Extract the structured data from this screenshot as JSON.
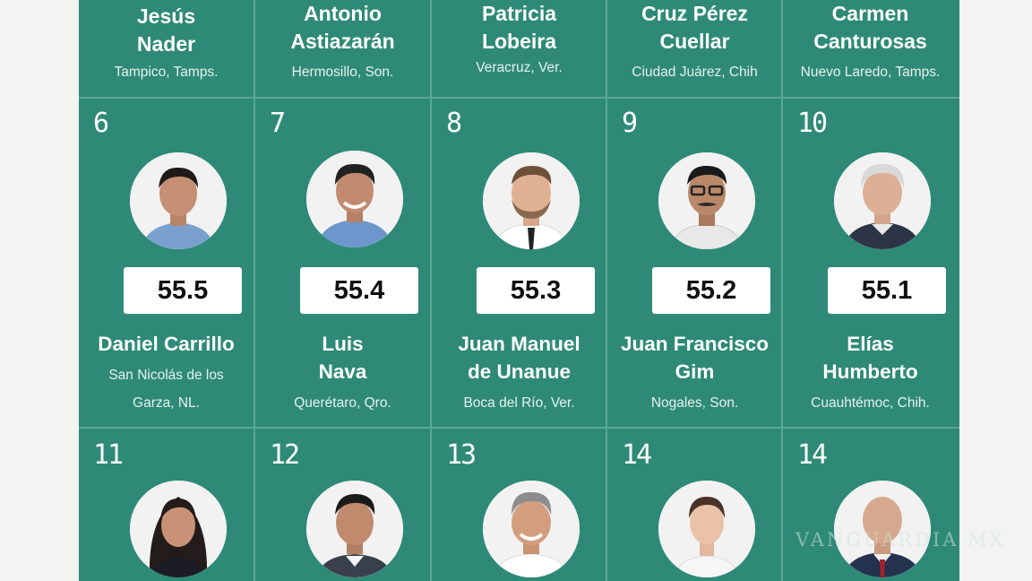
{
  "top_row": [
    {
      "first": "Jesús",
      "last": "Nader",
      "location": "Tampico, Tamps."
    },
    {
      "first": "Antonio",
      "last": "Astiazarán",
      "location": "Hermosillo, Son."
    },
    {
      "first": "Patricia",
      "last": "Lobeira",
      "location": "Veracruz, Ver."
    },
    {
      "first": "Cruz Pérez",
      "last": "Cuellar",
      "location": "Ciudad Juárez, Chih"
    },
    {
      "first": "Carmen",
      "last": "Canturosas",
      "location": "Nuevo Laredo, Tamps."
    }
  ],
  "middle_row": [
    {
      "rank": "6",
      "score": "55.5",
      "name_line1": "Daniel Carrillo",
      "name_line2": "",
      "location_line1": "San Nicolás de los",
      "location_line2": "Garza, NL.",
      "photo": "man-short-dark-hair-blue-shirt"
    },
    {
      "rank": "7",
      "score": "55.4",
      "name_line1": "Luis",
      "name_line2": "Nava",
      "location_line1": "",
      "location_line2": "Querétaro, Qro.",
      "photo": "man-smiling-blue-shirt"
    },
    {
      "rank": "8",
      "score": "55.3",
      "name_line1": "Juan Manuel",
      "name_line2": "de Unanue",
      "location_line1": "",
      "location_line2": "Boca del Río, Ver.",
      "photo": "man-beard-dark-tie"
    },
    {
      "rank": "9",
      "score": "55.2",
      "name_line1": "Juan Francisco",
      "name_line2": "Gim",
      "location_line1": "",
      "location_line2": "Nogales, Son.",
      "photo": "man-glasses-mustache"
    },
    {
      "rank": "10",
      "score": "55.1",
      "name_line1": "Elías",
      "name_line2": "Humberto",
      "location_line1": "",
      "location_line2": "Cuauhtémoc, Chih.",
      "photo": "man-gray-hair-suit"
    }
  ],
  "bottom_row": [
    {
      "rank": "11",
      "photo": "woman-long-dark-hair"
    },
    {
      "rank": "12",
      "photo": "man-dark-hair-suit"
    },
    {
      "rank": "13",
      "photo": "man-gray-hair-smiling"
    },
    {
      "rank": "14",
      "photo": "woman-hair-pulled-back"
    },
    {
      "rank": "14",
      "photo": "man-bald-suit-red-tie"
    }
  ],
  "watermark": "VANGUARDIA MX",
  "colors": {
    "panel": "#2e8a76",
    "divider": "#5aa896",
    "background": "#f3f3f1"
  }
}
